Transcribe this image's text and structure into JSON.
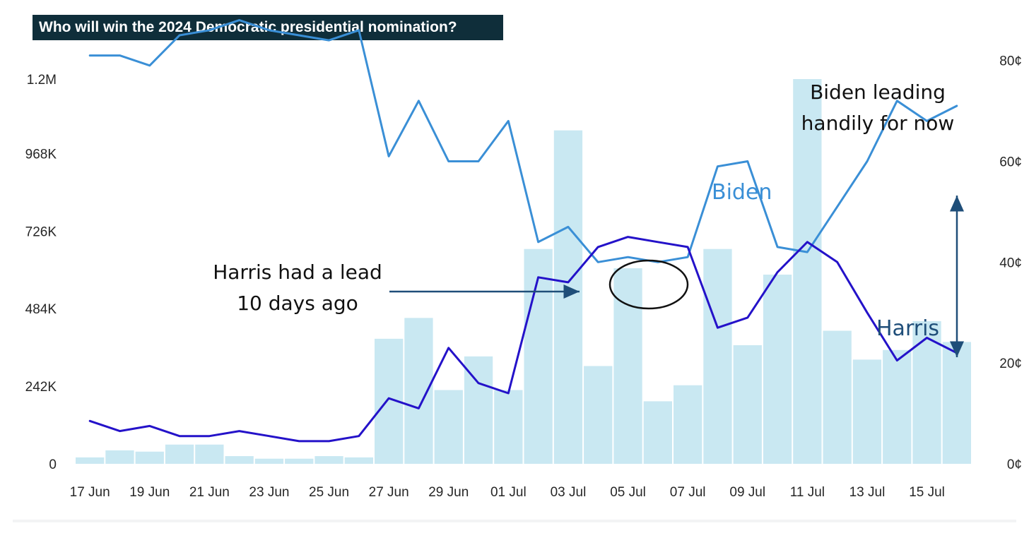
{
  "chart_data": {
    "type": "bar+line",
    "title": "Who will win the 2024 Democratic presidential nomination?",
    "categories": [
      "17 Jun",
      "18 Jun",
      "19 Jun",
      "20 Jun",
      "21 Jun",
      "22 Jun",
      "23 Jun",
      "24 Jun",
      "25 Jun",
      "26 Jun",
      "27 Jun",
      "28 Jun",
      "29 Jun",
      "30 Jun",
      "01 Jul",
      "02 Jul",
      "03 Jul",
      "04 Jul",
      "05 Jul",
      "06 Jul",
      "07 Jul",
      "08 Jul",
      "09 Jul",
      "10 Jul",
      "11 Jul",
      "12 Jul",
      "13 Jul",
      "14 Jul",
      "15 Jul",
      "16 Jul"
    ],
    "x_tick_labels": [
      "17 Jun",
      "19 Jun",
      "21 Jun",
      "23 Jun",
      "25 Jun",
      "27 Jun",
      "29 Jun",
      "01 Jul",
      "03 Jul",
      "05 Jul",
      "07 Jul",
      "09 Jul",
      "11 Jul",
      "13 Jul",
      "15 Jul"
    ],
    "volume": {
      "axis": "left",
      "ylim": [
        0,
        1200000
      ],
      "tick_labels": [
        "0",
        "242K",
        "484K",
        "726K",
        "968K",
        "1.2M"
      ],
      "tick_values": [
        0,
        242000,
        484000,
        726000,
        968000,
        1200000
      ],
      "color": "#c9e8f2",
      "values": [
        20000,
        42000,
        38000,
        60000,
        60000,
        24000,
        16000,
        16000,
        24000,
        20000,
        390000,
        455000,
        230000,
        335000,
        230000,
        670000,
        1040000,
        305000,
        610000,
        195000,
        245000,
        670000,
        370000,
        590000,
        1200000,
        415000,
        325000,
        355000,
        445000,
        380000
      ]
    },
    "price_axis": {
      "axis": "right",
      "ylim": [
        0,
        92
      ],
      "tick_labels": [
        "0¢",
        "20¢",
        "40¢",
        "60¢",
        "80¢"
      ],
      "tick_values": [
        0,
        20,
        40,
        60,
        80
      ]
    },
    "series": [
      {
        "name": "Biden",
        "color": "#3a8fd6",
        "values": [
          81,
          81,
          79,
          85,
          86,
          88,
          86,
          85,
          84,
          86,
          61,
          72,
          60,
          60,
          68,
          44,
          47,
          40,
          41,
          40,
          41,
          59,
          60,
          43,
          42,
          51,
          60,
          72,
          68,
          71
        ]
      },
      {
        "name": "Harris",
        "color": "#2412c9",
        "values": [
          8.5,
          6.5,
          7.5,
          5.5,
          5.5,
          6.5,
          5.5,
          4.5,
          4.5,
          5.5,
          13,
          11,
          23,
          16,
          14,
          37,
          36,
          43,
          45,
          44,
          43,
          27,
          29,
          38,
          44,
          40,
          30,
          20.5,
          25,
          22
        ]
      }
    ],
    "annotations": {
      "harris_lead_line1": "Harris had a lead",
      "harris_lead_line2": "10 days ago",
      "biden_leading_line1": "Biden leading",
      "biden_leading_line2": "handily for now",
      "biden_label": "Biden",
      "harris_label": "Harris"
    },
    "legend": "none",
    "grid": false
  }
}
